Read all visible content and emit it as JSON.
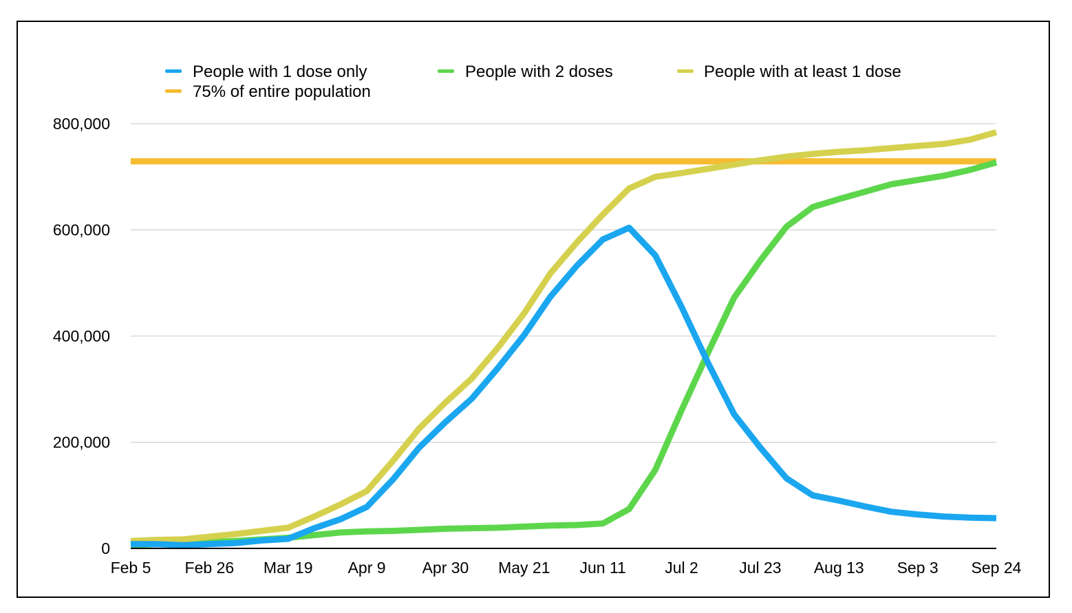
{
  "chart_data": {
    "type": "line",
    "title": "",
    "xlabel": "",
    "ylabel": "",
    "ylim": [
      0,
      800000
    ],
    "yticks": [
      0,
      200000,
      400000,
      600000,
      800000
    ],
    "ytick_labels": [
      "0",
      "200,000",
      "400,000",
      "600,000",
      "800,000"
    ],
    "xtick_labels": [
      "Feb 5",
      "Feb 26",
      "Mar 19",
      "Apr 9",
      "Apr 30",
      "May 21",
      "Jun 11",
      "Jul 2",
      "Jul 23",
      "Aug 13",
      "Sep 3",
      "Sep 24"
    ],
    "x": [
      "Feb 5",
      "Feb 12",
      "Feb 19",
      "Feb 26",
      "Mar 5",
      "Mar 12",
      "Mar 19",
      "Mar 26",
      "Apr 2",
      "Apr 9",
      "Apr 16",
      "Apr 23",
      "Apr 30",
      "May 7",
      "May 14",
      "May 21",
      "May 28",
      "Jun 4",
      "Jun 11",
      "Jun 18",
      "Jun 25",
      "Jul 2",
      "Jul 9",
      "Jul 16",
      "Jul 23",
      "Jul 30",
      "Aug 6",
      "Aug 13",
      "Aug 20",
      "Aug 27",
      "Sep 3",
      "Sep 10",
      "Sep 17",
      "Sep 24"
    ],
    "grid": true,
    "legend_position": "top",
    "series": [
      {
        "name": "People with 1 dose only",
        "color": "#1ba6f0",
        "values": [
          8000,
          8000,
          6000,
          8000,
          10000,
          15000,
          18000,
          38000,
          55000,
          78000,
          130000,
          190000,
          238000,
          282000,
          340000,
          402000,
          474000,
          532000,
          582000,
          604000,
          552000,
          455000,
          350000,
          253000,
          190000,
          132000,
          100000,
          90000,
          79000,
          69000,
          64000,
          60000,
          58000,
          57000
        ]
      },
      {
        "name": "People with 2 doses",
        "color": "#5dd64c",
        "values": [
          6000,
          8000,
          10000,
          12000,
          14000,
          17000,
          20000,
          25000,
          30000,
          32000,
          33000,
          35000,
          37000,
          38000,
          39000,
          41000,
          43000,
          44000,
          47000,
          74000,
          148000,
          260000,
          368000,
          472000,
          542000,
          606000,
          643000,
          658000,
          672000,
          686000,
          694000,
          702000,
          713000,
          727000
        ]
      },
      {
        "name": "People with at least 1 dose",
        "color": "#d5d14f",
        "values": [
          14000,
          16000,
          17000,
          22000,
          27000,
          33000,
          39000,
          60000,
          83000,
          108000,
          165000,
          226000,
          275000,
          320000,
          378000,
          443000,
          518000,
          576000,
          629000,
          678000,
          700000,
          707000,
          715000,
          723000,
          731000,
          738000,
          743000,
          747000,
          750000,
          754000,
          758000,
          762000,
          770000,
          784000
        ]
      },
      {
        "name": "75% of entire population",
        "color": "#f5bb32",
        "values": [
          729000,
          729000,
          729000,
          729000,
          729000,
          729000,
          729000,
          729000,
          729000,
          729000,
          729000,
          729000,
          729000,
          729000,
          729000,
          729000,
          729000,
          729000,
          729000,
          729000,
          729000,
          729000,
          729000,
          729000,
          729000,
          729000,
          729000,
          729000,
          729000,
          729000,
          729000,
          729000,
          729000,
          729000
        ]
      }
    ]
  }
}
